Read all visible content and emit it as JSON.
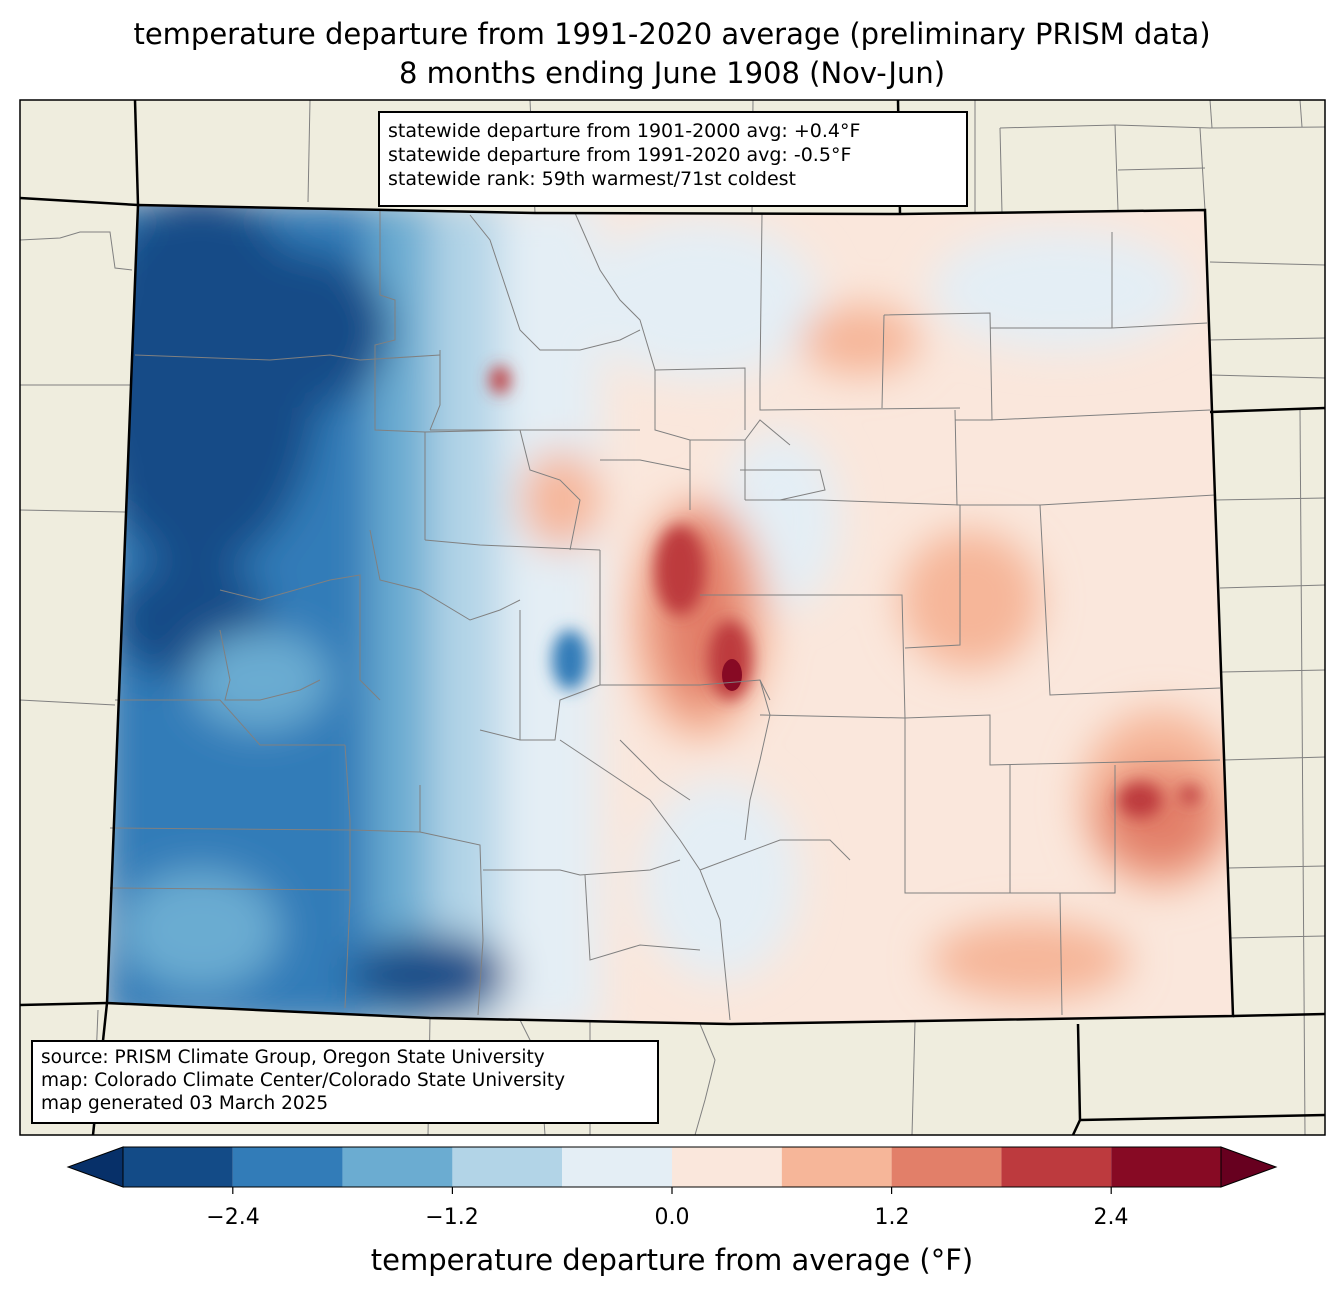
{
  "title": {
    "line1": "temperature departure from 1991-2020 average (preliminary PRISM data)",
    "line2": "8 months ending June 1908 (Nov-Jun)"
  },
  "stats": {
    "line1": "statewide departure from 1901-2000 avg: +0.4°F",
    "line2": "statewide departure from 1991-2020 avg: -0.5°F",
    "line3": "statewide rank: 59th warmest/71st coldest"
  },
  "source": {
    "line1": "source: PRISM Climate Group, Oregon State University",
    "line2": "map: Colorado Climate Center/Colorado State University",
    "line3": "map generated 03 March 2025"
  },
  "colorbar": {
    "label": "temperature departure from average (°F)",
    "ticks": [
      "−2.4",
      "−1.2",
      "0.0",
      "1.2",
      "2.4"
    ],
    "bins": [
      {
        "from": -3.0,
        "to": -2.4,
        "color": "#134b87"
      },
      {
        "from": -2.4,
        "to": -1.8,
        "color": "#327cb8"
      },
      {
        "from": -1.8,
        "to": -1.2,
        "color": "#6bacd1"
      },
      {
        "from": -1.2,
        "to": -0.6,
        "color": "#b2d4e7"
      },
      {
        "from": -0.6,
        "to": 0.0,
        "color": "#e4eef5"
      },
      {
        "from": 0.0,
        "to": 0.6,
        "color": "#fae7dc"
      },
      {
        "from": 0.6,
        "to": 1.2,
        "color": "#f6b699"
      },
      {
        "from": 1.2,
        "to": 1.8,
        "color": "#e27f69"
      },
      {
        "from": 1.8,
        "to": 2.4,
        "color": "#bd3a3e"
      },
      {
        "from": 2.4,
        "to": 3.0,
        "color": "#870a24"
      }
    ],
    "under_color": "#073069",
    "over_color": "#67001f"
  },
  "map_colors": {
    "land": "#efedde",
    "state_border": "#000000",
    "county_border": "#808080"
  }
}
